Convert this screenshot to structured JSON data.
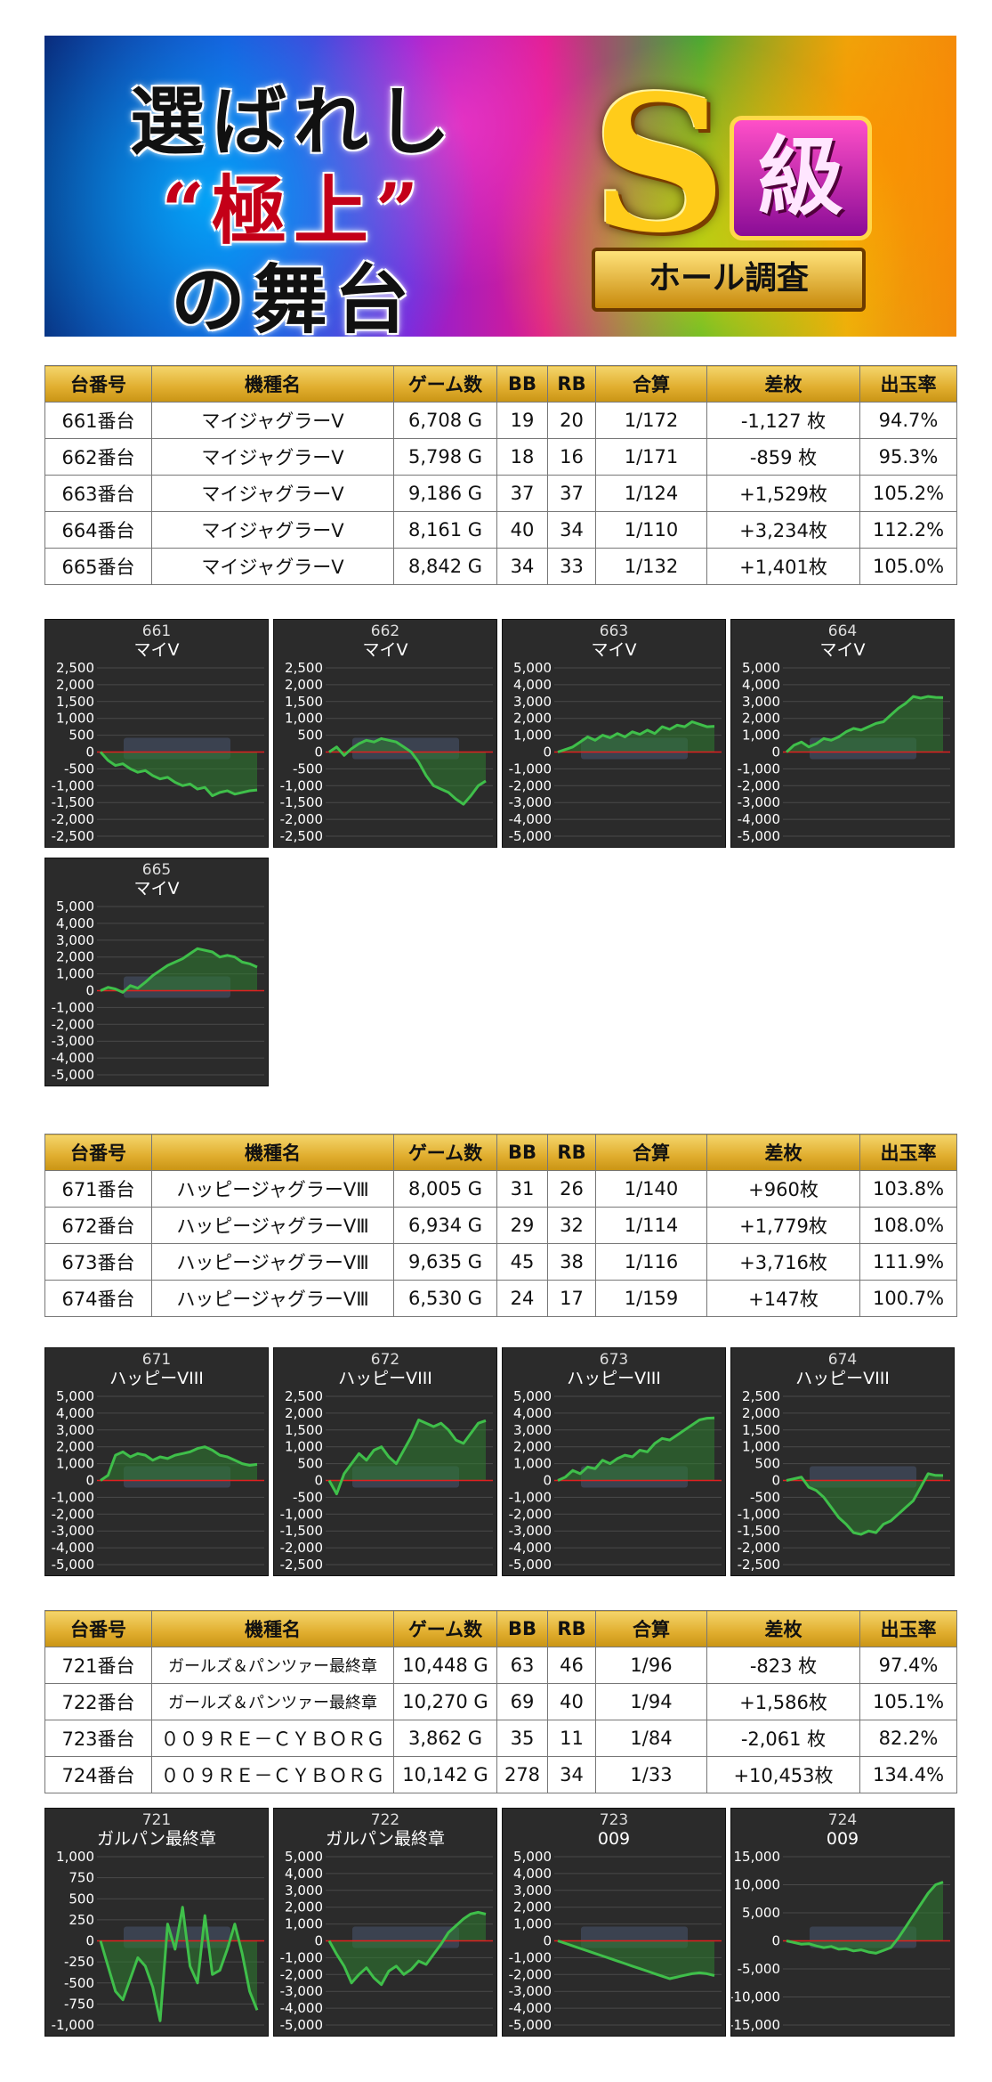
{
  "banner": {
    "line1": "選ばれし",
    "line2": "“極上”",
    "line3": "の舞台",
    "emblem_letter": "S",
    "emblem_kanji": "級",
    "emblem_ribbon": "ホール調査"
  },
  "tables": [
    {
      "headers": [
        "台番号",
        "機種名",
        "ゲーム数",
        "BB",
        "RB",
        "合算",
        "差枚",
        "出玉率"
      ],
      "rows": [
        {
          "no": "661番台",
          "machine": "マイジャグラーⅤ",
          "games": "6,708 G",
          "bb": "19",
          "rb": "20",
          "gousan": "1/172",
          "samai": "-1,127 枚",
          "rate": "94.7%",
          "sign": "neg"
        },
        {
          "no": "662番台",
          "machine": "マイジャグラーⅤ",
          "games": "5,798 G",
          "bb": "18",
          "rb": "16",
          "gousan": "1/171",
          "samai": "-859 枚",
          "rate": "95.3%",
          "sign": "neg"
        },
        {
          "no": "663番台",
          "machine": "マイジャグラーⅤ",
          "games": "9,186 G",
          "bb": "37",
          "rb": "37",
          "gousan": "1/124",
          "samai": "+1,529枚",
          "rate": "105.2%",
          "sign": "pos"
        },
        {
          "no": "664番台",
          "machine": "マイジャグラーⅤ",
          "games": "8,161 G",
          "bb": "40",
          "rb": "34",
          "gousan": "1/110",
          "samai": "+3,234枚",
          "rate": "112.2%",
          "sign": "pos"
        },
        {
          "no": "665番台",
          "machine": "マイジャグラーⅤ",
          "games": "8,842 G",
          "bb": "34",
          "rb": "33",
          "gousan": "1/132",
          "samai": "+1,401枚",
          "rate": "105.0%",
          "sign": "pos"
        }
      ]
    },
    {
      "headers": [
        "台番号",
        "機種名",
        "ゲーム数",
        "BB",
        "RB",
        "合算",
        "差枚",
        "出玉率"
      ],
      "rows": [
        {
          "no": "671番台",
          "machine": "ハッピージャグラーⅤⅢ",
          "games": "8,005 G",
          "bb": "31",
          "rb": "26",
          "gousan": "1/140",
          "samai": "+960枚",
          "rate": "103.8%",
          "sign": "pos"
        },
        {
          "no": "672番台",
          "machine": "ハッピージャグラーⅤⅢ",
          "games": "6,934 G",
          "bb": "29",
          "rb": "32",
          "gousan": "1/114",
          "samai": "+1,779枚",
          "rate": "108.0%",
          "sign": "pos"
        },
        {
          "no": "673番台",
          "machine": "ハッピージャグラーⅤⅢ",
          "games": "9,635 G",
          "bb": "45",
          "rb": "38",
          "gousan": "1/116",
          "samai": "+3,716枚",
          "rate": "111.9%",
          "sign": "pos"
        },
        {
          "no": "674番台",
          "machine": "ハッピージャグラーⅤⅢ",
          "games": "6,530 G",
          "bb": "24",
          "rb": "17",
          "gousan": "1/159",
          "samai": "+147枚",
          "rate": "100.7%",
          "sign": "pos"
        }
      ]
    },
    {
      "headers": [
        "台番号",
        "機種名",
        "ゲーム数",
        "BB",
        "RB",
        "合算",
        "差枚",
        "出玉率"
      ],
      "rows": [
        {
          "no": "721番台",
          "machine": "ガールズ＆パンツァー最終章",
          "games": "10,448 G",
          "bb": "63",
          "rb": "46",
          "gousan": "1/96",
          "samai": "-823 枚",
          "rate": "97.4%",
          "sign": "neg"
        },
        {
          "no": "722番台",
          "machine": "ガールズ＆パンツァー最終章",
          "games": "10,270 G",
          "bb": "69",
          "rb": "40",
          "gousan": "1/94",
          "samai": "+1,586枚",
          "rate": "105.1%",
          "sign": "pos"
        },
        {
          "no": "723番台",
          "machine": "００９ＲＥ－ＣＹＢＯＲＧ",
          "games": "3,862 G",
          "bb": "35",
          "rb": "11",
          "gousan": "1/84",
          "samai": "-2,061 枚",
          "rate": "82.2%",
          "sign": "neg"
        },
        {
          "no": "724番台",
          "machine": "００９ＲＥ－ＣＹＢＯＲＧ",
          "games": "10,142 G",
          "bb": "278",
          "rb": "34",
          "gousan": "1/33",
          "samai": "+10,453枚",
          "rate": "134.4%",
          "sign": "pos"
        }
      ]
    }
  ],
  "colors": {
    "line": "#3fbf4a",
    "fill": "#2e7d2f",
    "zero": "#e02020",
    "panel": "#2b2b2b",
    "negative": "#e00000",
    "positive": "#0000d8"
  },
  "chart_data": [
    {
      "type": "area",
      "title": "661",
      "subtitle": "マイV",
      "ylim": [
        -2500,
        2500
      ],
      "yticks": [
        "2,500",
        "2,000",
        "1,500",
        "1,000",
        "500",
        "0",
        "-500",
        "-1,000",
        "-1,500",
        "-2,000",
        "-2,500"
      ],
      "values": [
        0,
        -250,
        -400,
        -350,
        -500,
        -600,
        -550,
        -700,
        -800,
        -750,
        -900,
        -1000,
        -950,
        -1100,
        -1050,
        -1300,
        -1200,
        -1150,
        -1250,
        -1200,
        -1150,
        -1127
      ]
    },
    {
      "type": "area",
      "title": "662",
      "subtitle": "マイV",
      "ylim": [
        -2500,
        2500
      ],
      "yticks": [
        "2,500",
        "2,000",
        "1,500",
        "1,000",
        "500",
        "0",
        "-500",
        "-1,000",
        "-1,500",
        "-2,000",
        "-2,500"
      ],
      "values": [
        0,
        150,
        -100,
        100,
        250,
        350,
        300,
        400,
        350,
        300,
        150,
        0,
        -300,
        -700,
        -1000,
        -1100,
        -1200,
        -1400,
        -1550,
        -1300,
        -1000,
        -859
      ]
    },
    {
      "type": "area",
      "title": "663",
      "subtitle": "マイV",
      "ylim": [
        -5000,
        5000
      ],
      "yticks": [
        "5,000",
        "4,000",
        "3,000",
        "2,000",
        "1,000",
        "0",
        "-1,000",
        "-2,000",
        "-3,000",
        "-4,000",
        "-5,000"
      ],
      "values": [
        0,
        150,
        300,
        600,
        900,
        700,
        1000,
        850,
        1100,
        900,
        1200,
        1050,
        1300,
        1100,
        1500,
        1350,
        1600,
        1500,
        1800,
        1650,
        1500,
        1529
      ]
    },
    {
      "type": "area",
      "title": "664",
      "subtitle": "マイV",
      "ylim": [
        -5000,
        5000
      ],
      "yticks": [
        "5,000",
        "4,000",
        "3,000",
        "2,000",
        "1,000",
        "0",
        "-1,000",
        "-2,000",
        "-3,000",
        "-4,000",
        "-5,000"
      ],
      "values": [
        0,
        400,
        600,
        300,
        500,
        800,
        700,
        900,
        1200,
        1400,
        1300,
        1500,
        1700,
        1800,
        2200,
        2600,
        2900,
        3300,
        3200,
        3300,
        3250,
        3234
      ]
    },
    {
      "type": "area",
      "title": "665",
      "subtitle": "マイV",
      "ylim": [
        -5000,
        5000
      ],
      "yticks": [
        "5,000",
        "4,000",
        "3,000",
        "2,000",
        "1,000",
        "0",
        "-1,000",
        "-2,000",
        "-3,000",
        "-4,000",
        "-5,000"
      ],
      "values": [
        0,
        200,
        100,
        -100,
        300,
        150,
        500,
        900,
        1200,
        1500,
        1700,
        1900,
        2200,
        2500,
        2400,
        2300,
        2000,
        2100,
        2000,
        1700,
        1600,
        1401
      ]
    },
    {
      "type": "area",
      "title": "671",
      "subtitle": "ハッピーVIII",
      "ylim": [
        -5000,
        5000
      ],
      "yticks": [
        "5,000",
        "4,000",
        "3,000",
        "2,000",
        "1,000",
        "0",
        "-1,000",
        "-2,000",
        "-3,000",
        "-4,000",
        "-5,000"
      ],
      "values": [
        0,
        300,
        1500,
        1700,
        1400,
        1600,
        1500,
        1200,
        1400,
        1300,
        1500,
        1600,
        1700,
        1900,
        2000,
        1800,
        1500,
        1400,
        1200,
        1000,
        900,
        960
      ]
    },
    {
      "type": "area",
      "title": "672",
      "subtitle": "ハッピーVIII",
      "ylim": [
        -2500,
        2500
      ],
      "yticks": [
        "2,500",
        "2,000",
        "1,500",
        "1,000",
        "500",
        "0",
        "-500",
        "-1,000",
        "-1,500",
        "-2,000",
        "-2,500"
      ],
      "values": [
        0,
        -400,
        200,
        500,
        800,
        600,
        900,
        1000,
        700,
        500,
        900,
        1300,
        1800,
        1700,
        1600,
        1700,
        1500,
        1200,
        1100,
        1400,
        1700,
        1779
      ]
    },
    {
      "type": "area",
      "title": "673",
      "subtitle": "ハッピーVIII",
      "ylim": [
        -5000,
        5000
      ],
      "yticks": [
        "5,000",
        "4,000",
        "3,000",
        "2,000",
        "1,000",
        "0",
        "-1,000",
        "-2,000",
        "-3,000",
        "-4,000",
        "-5,000"
      ],
      "values": [
        0,
        200,
        600,
        400,
        800,
        700,
        1200,
        1000,
        1300,
        1500,
        1400,
        1800,
        1700,
        2200,
        2500,
        2400,
        2700,
        3000,
        3300,
        3600,
        3700,
        3716
      ]
    },
    {
      "type": "area",
      "title": "674",
      "subtitle": "ハッピーVIII",
      "ylim": [
        -2500,
        2500
      ],
      "yticks": [
        "2,500",
        "2,000",
        "1,500",
        "1,000",
        "500",
        "0",
        "-500",
        "-1,000",
        "-1,500",
        "-2,000",
        "-2,500"
      ],
      "values": [
        0,
        50,
        100,
        -200,
        -300,
        -500,
        -800,
        -1100,
        -1300,
        -1550,
        -1600,
        -1500,
        -1550,
        -1300,
        -1200,
        -1000,
        -800,
        -600,
        -200,
        200,
        150,
        147
      ]
    },
    {
      "type": "area",
      "title": "721",
      "subtitle": "ガルパン最終章",
      "ylim": [
        -1000,
        1000
      ],
      "yticks": [
        "1,000",
        "750",
        "500",
        "250",
        "0",
        "-250",
        "-500",
        "-750",
        "-1,000"
      ],
      "values": [
        0,
        -300,
        -600,
        -700,
        -450,
        -200,
        -300,
        -550,
        -950,
        200,
        -100,
        400,
        -300,
        -500,
        300,
        -400,
        -350,
        -100,
        200,
        -150,
        -600,
        -823
      ]
    },
    {
      "type": "area",
      "title": "722",
      "subtitle": "ガルパン最終章",
      "ylim": [
        -5000,
        5000
      ],
      "yticks": [
        "5,000",
        "4,000",
        "3,000",
        "2,000",
        "1,000",
        "0",
        "-1,000",
        "-2,000",
        "-3,000",
        "-4,000",
        "-5,000"
      ],
      "values": [
        0,
        -800,
        -1500,
        -2500,
        -2000,
        -1600,
        -2200,
        -2600,
        -1800,
        -1500,
        -2000,
        -1700,
        -1200,
        -1400,
        -800,
        -200,
        500,
        900,
        1300,
        1600,
        1700,
        1586
      ]
    },
    {
      "type": "area",
      "title": "723",
      "subtitle": "009",
      "ylim": [
        -5000,
        5000
      ],
      "yticks": [
        "5,000",
        "4,000",
        "3,000",
        "2,000",
        "1,000",
        "0",
        "-1,000",
        "-2,000",
        "-3,000",
        "-4,000",
        "-5,000"
      ],
      "values": [
        0,
        -150,
        -300,
        -450,
        -600,
        -750,
        -900,
        -1050,
        -1200,
        -1350,
        -1500,
        -1650,
        -1800,
        -1950,
        -2100,
        -2250,
        -2150,
        -2050,
        -1950,
        -1900,
        -1950,
        -2061
      ]
    },
    {
      "type": "area",
      "title": "724",
      "subtitle": "009",
      "ylim": [
        -15000,
        15000
      ],
      "yticks": [
        "15,000",
        "10,000",
        "5,000",
        "0",
        "-5,000",
        "-10,000",
        "-15,000"
      ],
      "values": [
        0,
        -300,
        -600,
        -500,
        -900,
        -1200,
        -1000,
        -1500,
        -1400,
        -1800,
        -1600,
        -2000,
        -2200,
        -1700,
        -1200,
        500,
        2500,
        4500,
        6500,
        8500,
        10000,
        10453
      ]
    }
  ]
}
